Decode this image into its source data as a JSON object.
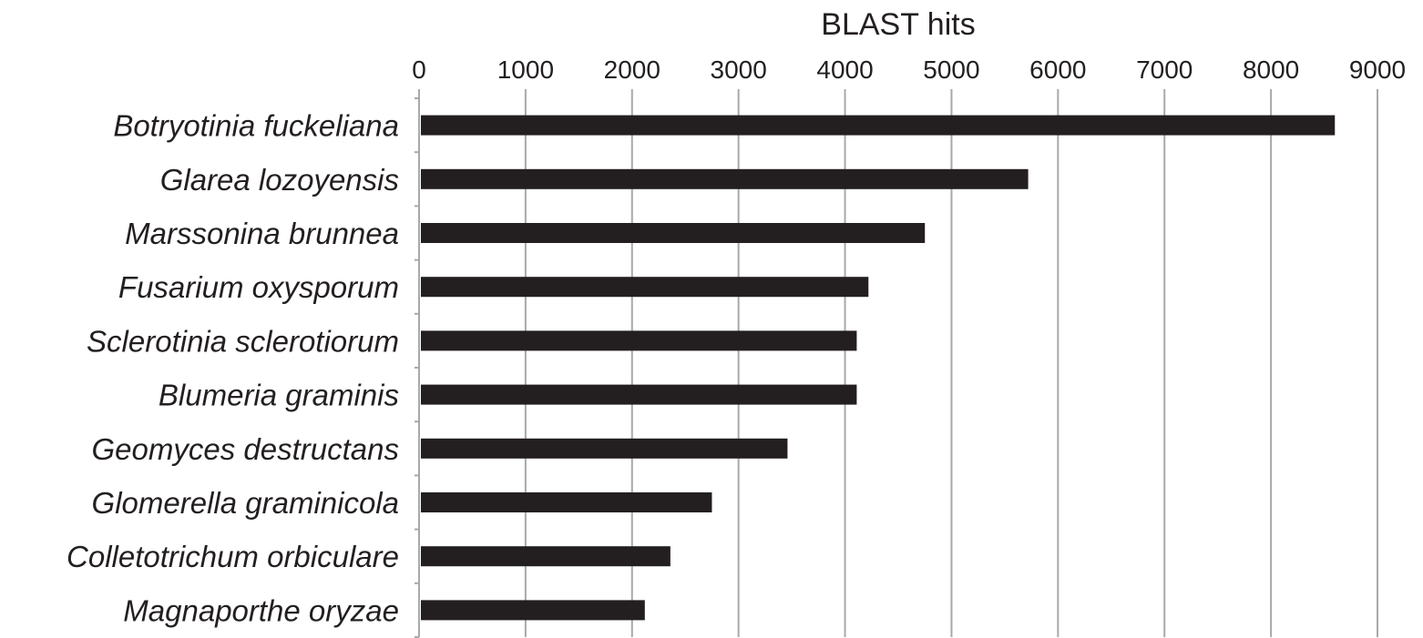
{
  "chart_data": {
    "type": "bar",
    "orientation": "horizontal",
    "xlabel": "BLAST hits",
    "xlabel_position": "top",
    "xlim": [
      0,
      9000
    ],
    "xticks": [
      0,
      1000,
      2000,
      3000,
      4000,
      5000,
      6000,
      7000,
      8000,
      9000
    ],
    "tick_labels": [
      "0",
      "1000",
      "2000",
      "3000",
      "4000",
      "5000",
      "6000",
      "7000",
      "8000",
      "9000"
    ],
    "grid": true,
    "legend": "none",
    "bar_color": "#231f20",
    "categories": [
      "Botryotinia fuckeliana",
      "Glarea lozoyensis",
      "Marssonina brunnea",
      "Fusarium oxysporum",
      "Sclerotinia sclerotiorum",
      "Blumeria graminis",
      "Geomyces destructans",
      "Glomerella graminicola",
      "Colletotrichum orbiculare",
      "Magnaporthe oryzae"
    ],
    "values": [
      8600,
      5720,
      4750,
      4220,
      4110,
      4110,
      3460,
      2750,
      2360,
      2120
    ]
  }
}
